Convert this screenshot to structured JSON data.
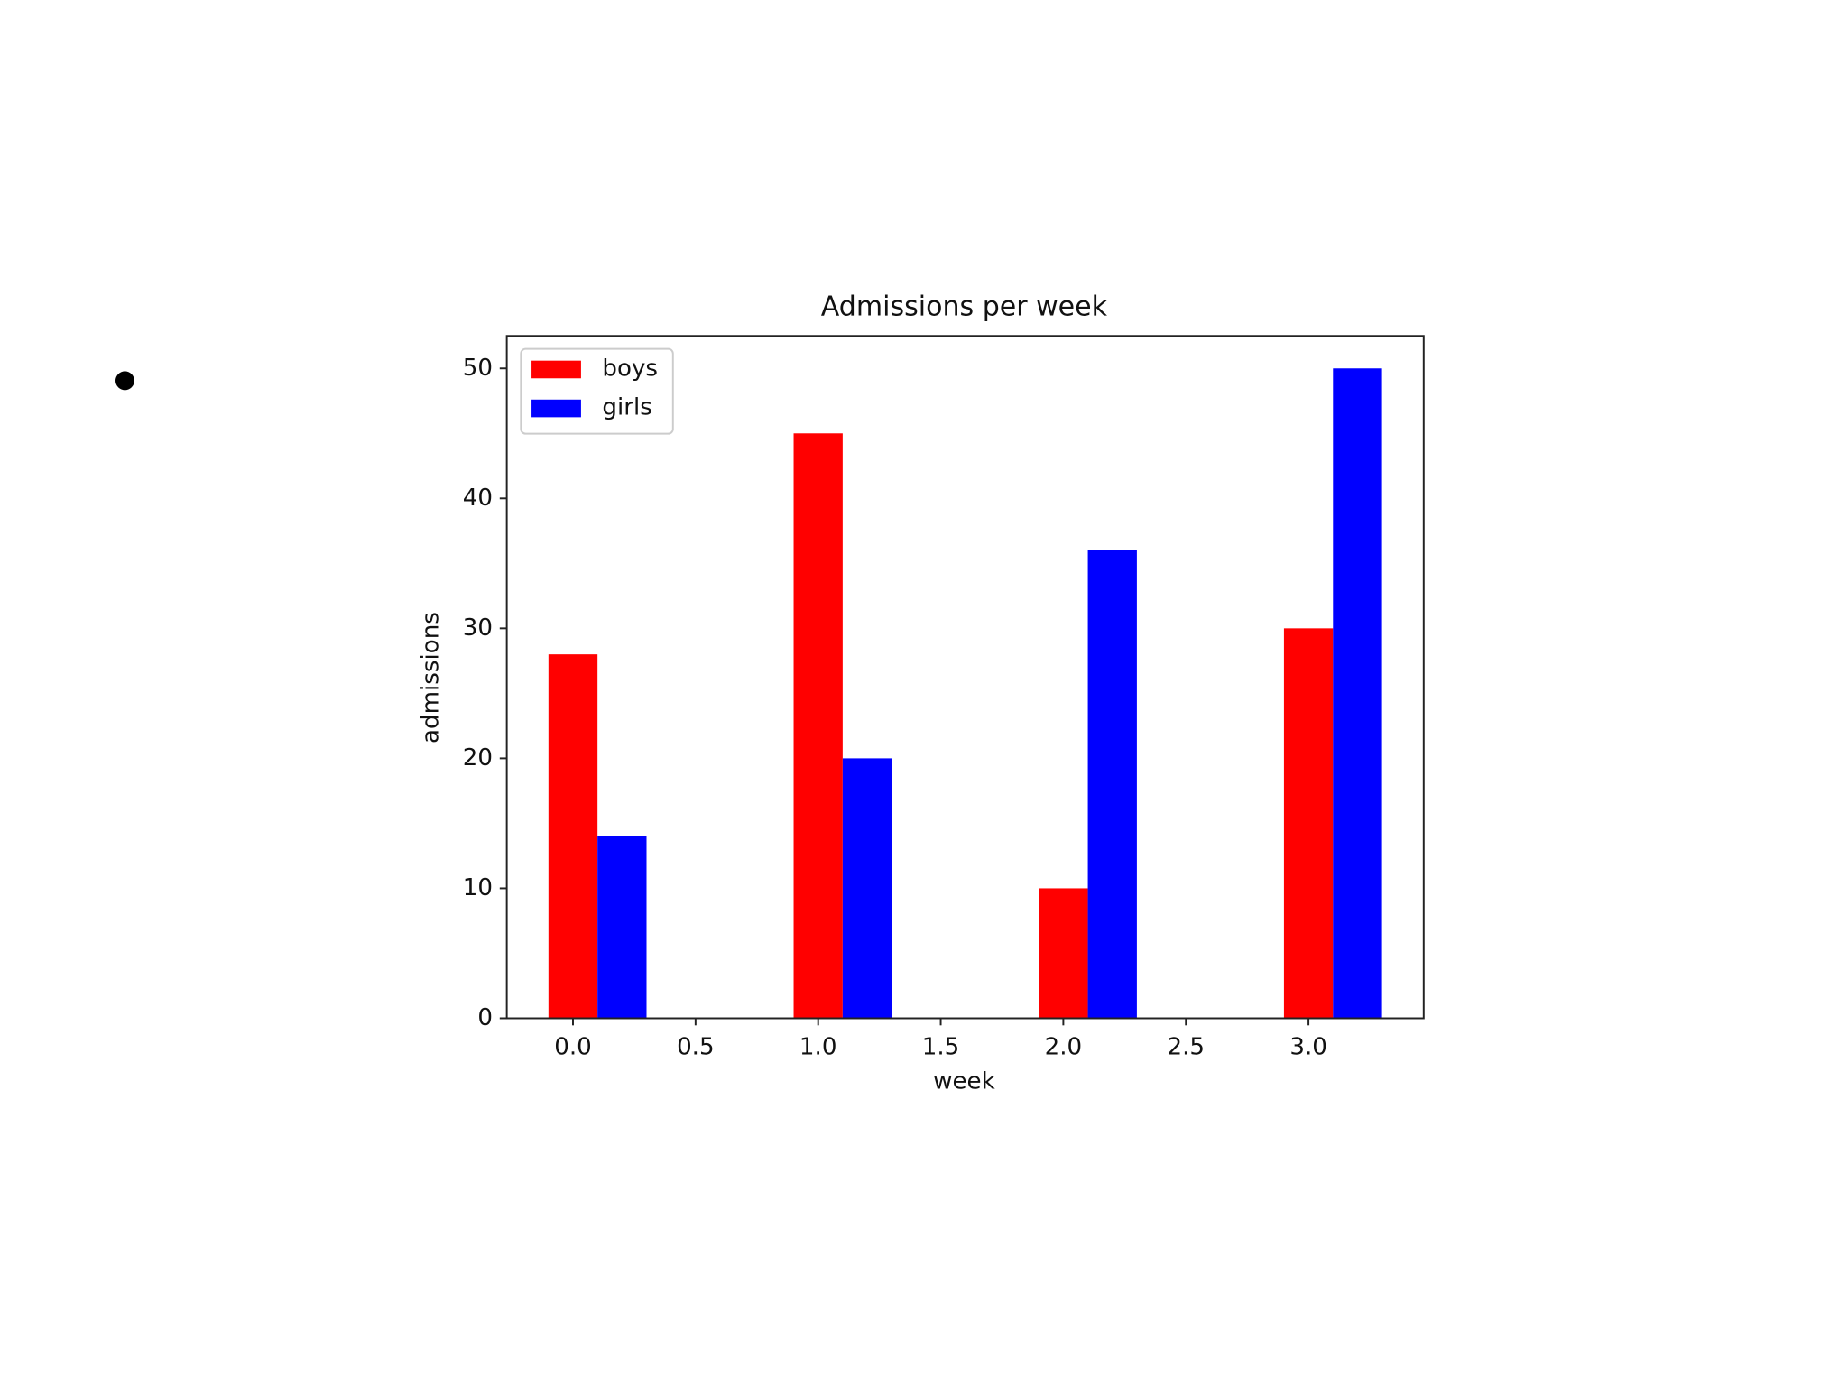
{
  "chart_data": {
    "type": "bar",
    "title": "Admissions per week",
    "x_label": "week",
    "y_label": "admissions",
    "x": [
      0,
      1,
      2,
      3
    ],
    "bar_width": 0.2,
    "series": [
      {
        "name": "boys",
        "color": "#ff0000",
        "values": [
          28,
          45,
          10,
          30
        ]
      },
      {
        "name": "girls",
        "color": "#0000ff",
        "values": [
          14,
          20,
          36,
          50
        ]
      }
    ],
    "xlim": [
      -0.27,
      3.47
    ],
    "xticks": [
      {
        "value": 0,
        "label": "0.0"
      },
      {
        "value": 0.5,
        "label": "0.5"
      },
      {
        "value": 1,
        "label": "1.0"
      },
      {
        "value": 1.5,
        "label": "1.5"
      },
      {
        "value": 2,
        "label": "2.0"
      },
      {
        "value": 2.5,
        "label": "2.5"
      },
      {
        "value": 3,
        "label": "3.0"
      }
    ],
    "ylim": [
      0,
      52.5
    ],
    "yticks": [
      0,
      10,
      20,
      30,
      40,
      50
    ],
    "legend": "upper left",
    "grid": false
  }
}
